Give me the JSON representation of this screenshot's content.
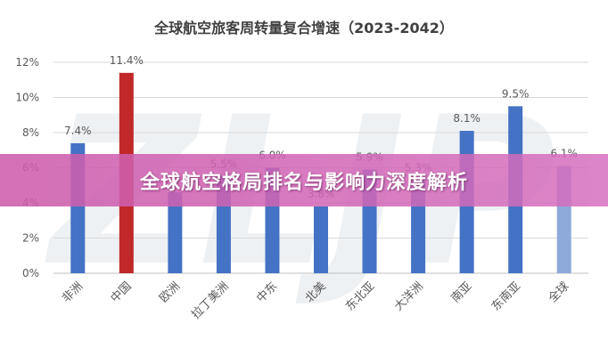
{
  "banner": {
    "text": "全球航空格局排名与影响力深度解析"
  },
  "watermark": {
    "text": "ZLJP"
  },
  "colors": {
    "bar_blue": "#4472c4",
    "bar_red": "#c0282a",
    "bar_light_blue": "#8eaadb",
    "gridline": "#d9d9d9",
    "axis_text": "#595959",
    "title_text": "#404040",
    "banner": "#cd5cac"
  },
  "chart_data": {
    "type": "bar",
    "title": "全球航空旅客周转量复合增速（2023-2042）",
    "categories": [
      "非洲",
      "中国",
      "欧洲",
      "拉丁美洲",
      "中东",
      "北美",
      "东北亚",
      "大洋洲",
      "南亚",
      "东南亚",
      "全球"
    ],
    "values": [
      7.4,
      11.4,
      4.6,
      5.5,
      6.0,
      3.8,
      5.9,
      5.3,
      8.1,
      9.5,
      6.1
    ],
    "data_labels": [
      "7.4%",
      "11.4%",
      "",
      "5.5%",
      "6.0%",
      "3.8%",
      "5.9%",
      "5.3%",
      "8.1%",
      "9.5%",
      "6.1%"
    ],
    "bar_colors": [
      "#4472c4",
      "#c0282a",
      "#4472c4",
      "#4472c4",
      "#4472c4",
      "#4472c4",
      "#4472c4",
      "#4472c4",
      "#4472c4",
      "#4472c4",
      "#8eaadb"
    ],
    "yticks": [
      "0%",
      "2%",
      "4%",
      "6%",
      "8%",
      "10%",
      "12%"
    ],
    "ylim": [
      0,
      12
    ],
    "grid": true,
    "xlabel": "",
    "ylabel": ""
  }
}
